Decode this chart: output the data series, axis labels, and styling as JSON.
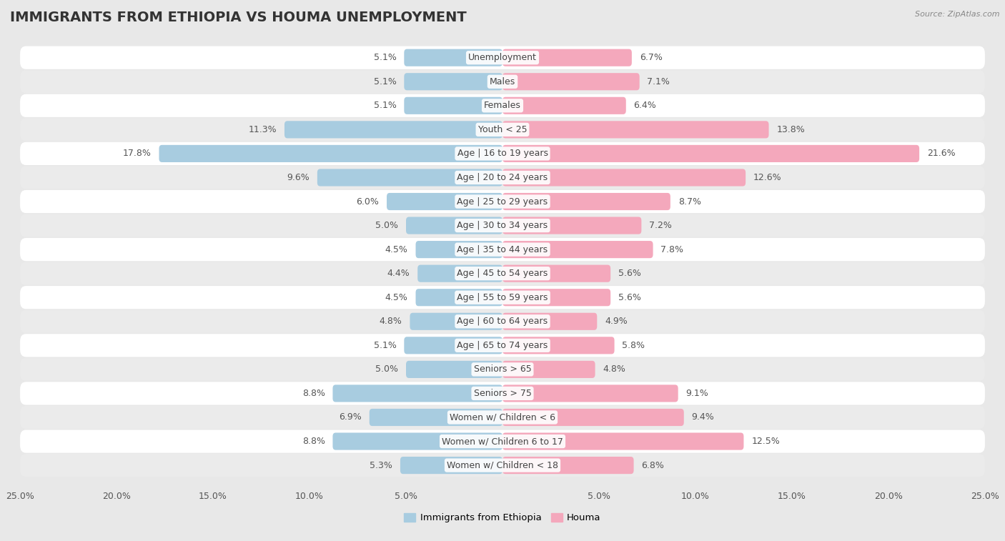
{
  "title": "IMMIGRANTS FROM ETHIOPIA VS HOUMA UNEMPLOYMENT",
  "source": "Source: ZipAtlas.com",
  "categories": [
    "Unemployment",
    "Males",
    "Females",
    "Youth < 25",
    "Age | 16 to 19 years",
    "Age | 20 to 24 years",
    "Age | 25 to 29 years",
    "Age | 30 to 34 years",
    "Age | 35 to 44 years",
    "Age | 45 to 54 years",
    "Age | 55 to 59 years",
    "Age | 60 to 64 years",
    "Age | 65 to 74 years",
    "Seniors > 65",
    "Seniors > 75",
    "Women w/ Children < 6",
    "Women w/ Children 6 to 17",
    "Women w/ Children < 18"
  ],
  "left_values": [
    5.1,
    5.1,
    5.1,
    11.3,
    17.8,
    9.6,
    6.0,
    5.0,
    4.5,
    4.4,
    4.5,
    4.8,
    5.1,
    5.0,
    8.8,
    6.9,
    8.8,
    5.3
  ],
  "right_values": [
    6.7,
    7.1,
    6.4,
    13.8,
    21.6,
    12.6,
    8.7,
    7.2,
    7.8,
    5.6,
    5.6,
    4.9,
    5.8,
    4.8,
    9.1,
    9.4,
    12.5,
    6.8
  ],
  "left_color": "#a8cce0",
  "right_color": "#f4a8bc",
  "left_label": "Immigrants from Ethiopia",
  "right_label": "Houma",
  "xlim": 25.0,
  "bg_color": "#e8e8e8",
  "row_color_even": "#ffffff",
  "row_color_odd": "#ebebeb",
  "title_fontsize": 14,
  "label_fontsize": 9,
  "value_fontsize": 9,
  "tick_fontsize": 9
}
